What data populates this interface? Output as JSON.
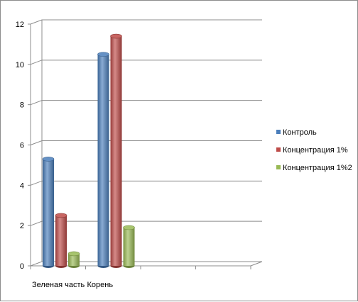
{
  "chart_data": {
    "type": "bar",
    "categories": [
      "Зеленая часть",
      "Корень"
    ],
    "series": [
      {
        "name": "Контроль",
        "values": [
          5.3,
          10.5
        ],
        "color": "#4a7ebb"
      },
      {
        "name": "Концентрация 1%",
        "values": [
          2.5,
          11.4
        ],
        "color": "#be4b48"
      },
      {
        "name": "Концентрация 1%2",
        "values": [
          0.6,
          1.9
        ],
        "color": "#98b954"
      }
    ],
    "yticks": [
      "0",
      "2",
      "4",
      "6",
      "8",
      "10",
      "12"
    ],
    "ylim": [
      0,
      12
    ],
    "grid": true,
    "legend_position": "right",
    "title": "",
    "xlabel": "",
    "ylabel": ""
  }
}
